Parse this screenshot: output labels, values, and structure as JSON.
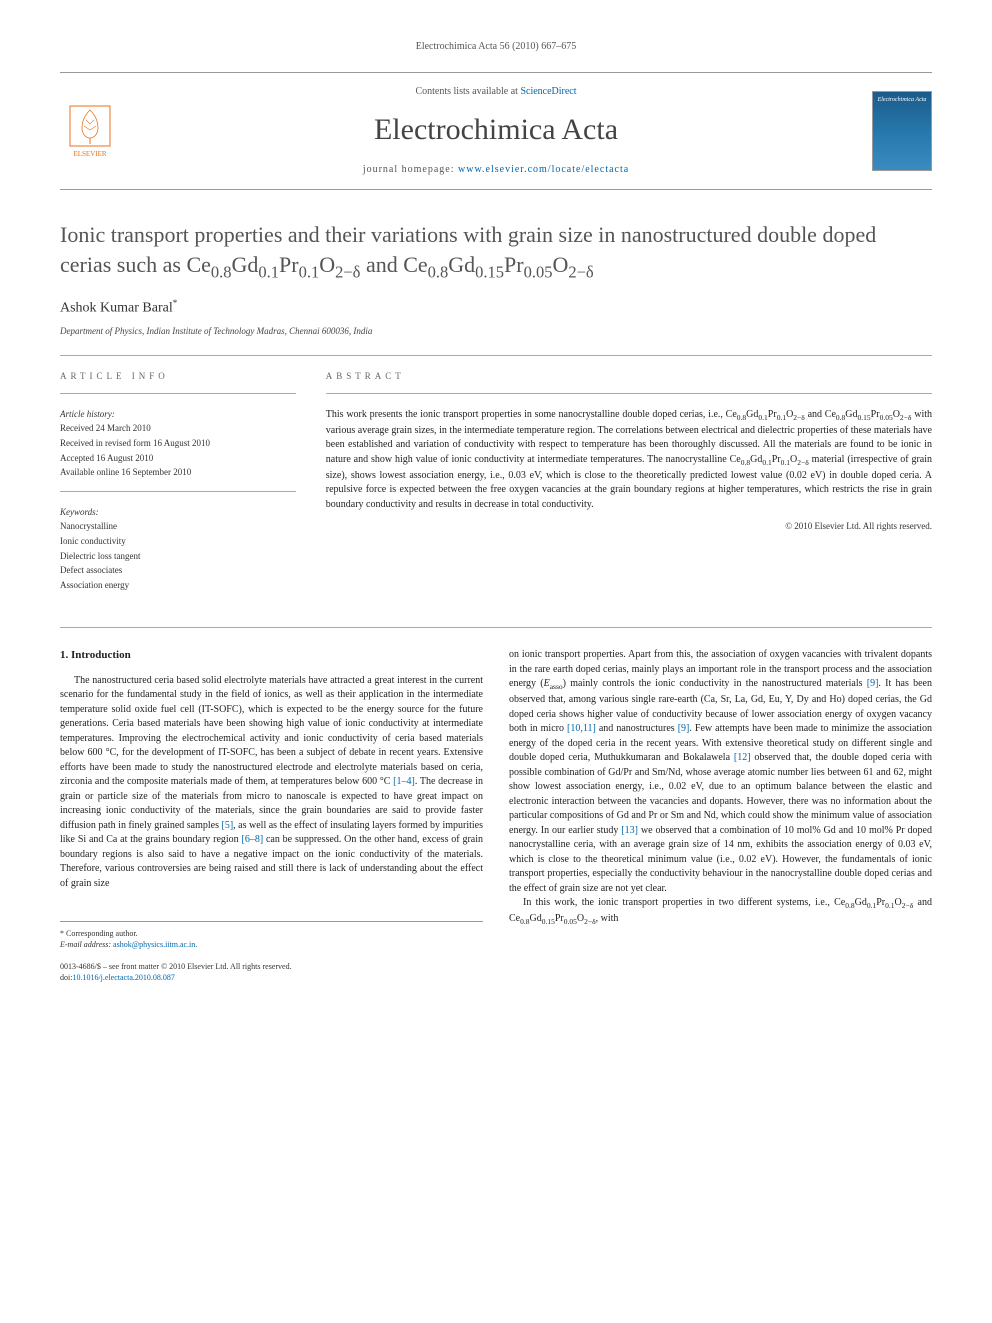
{
  "meta": {
    "citation": "Electrochimica Acta 56 (2010) 667–675"
  },
  "masthead": {
    "contents_prefix": "Contents lists available at ",
    "contents_link": "ScienceDirect",
    "journal": "Electrochimica Acta",
    "homepage_prefix": "journal homepage: ",
    "homepage_url": "www.elsevier.com/locate/electacta",
    "publisher_name": "ELSEVIER",
    "cover_label": "Electrochimica Acta"
  },
  "article": {
    "title_html": "Ionic transport properties and their variations with grain size in nanostructured double doped cerias such as Ce<sub>0.8</sub>Gd<sub>0.1</sub>Pr<sub>0.1</sub>O<sub>2−δ</sub> and Ce<sub>0.8</sub>Gd<sub>0.15</sub>Pr<sub>0.05</sub>O<sub>2−δ</sub>",
    "author": "Ashok Kumar Baral",
    "author_mark": "*",
    "affiliation": "Department of Physics, Indian Institute of Technology Madras, Chennai 600036, India"
  },
  "info": {
    "head": "article info",
    "history_label": "Article history:",
    "received": "Received 24 March 2010",
    "revised": "Received in revised form 16 August 2010",
    "accepted": "Accepted 16 August 2010",
    "online": "Available online 16 September 2010",
    "keywords_label": "Keywords:",
    "kw1": "Nanocrystalline",
    "kw2": "Ionic conductivity",
    "kw3": "Dielectric loss tangent",
    "kw4": "Defect associates",
    "kw5": "Association energy"
  },
  "abstract": {
    "head": "abstract",
    "text_html": "This work presents the ionic transport properties in some nanocrystalline double doped cerias, i.e., Ce<sub>0.8</sub>Gd<sub>0.1</sub>Pr<sub>0.1</sub>O<sub>2−δ</sub> and Ce<sub>0.8</sub>Gd<sub>0.15</sub>Pr<sub>0.05</sub>O<sub>2−δ</sub> with various average grain sizes, in the intermediate temperature region. The correlations between electrical and dielectric properties of these materials have been established and variation of conductivity with respect to temperature has been thoroughly discussed. All the materials are found to be ionic in nature and show high value of ionic conductivity at intermediate temperatures. The nanocrystalline Ce<sub>0.8</sub>Gd<sub>0.1</sub>Pr<sub>0.1</sub>O<sub>2−δ</sub> material (irrespective of grain size), shows lowest association energy, i.e., 0.03 eV, which is close to the theoretically predicted lowest value (0.02 eV) in double doped ceria. A repulsive force is expected between the free oxygen vacancies at the grain boundary regions at higher temperatures, which restricts the rise in grain boundary conductivity and results in decrease in total conductivity.",
    "copyright": "© 2010 Elsevier Ltd. All rights reserved."
  },
  "body": {
    "section_heading": "1.  Introduction",
    "col1_html": "The nanostructured ceria based solid electrolyte materials have attracted a great interest in the current scenario for the fundamental study in the field of ionics, as well as their application in the intermediate temperature solid oxide fuel cell (IT-SOFC), which is expected to be the energy source for the future generations. Ceria based materials have been showing high value of ionic conductivity at intermediate temperatures. Improving the electrochemical activity and ionic conductivity of ceria based materials below 600 °C, for the development of IT-SOFC, has been a subject of debate in recent years. Extensive efforts have been made to study the nanostructured electrode and electrolyte materials based on ceria, zirconia and the composite materials made of them, at temperatures below 600 °C <a href=\"#\">[1–4]</a>. The decrease in grain or particle size of the materials from micro to nanoscale is expected to have great impact on increasing ionic conductivity of the materials, since the grain boundaries are said to provide faster diffusion path in finely grained samples <a href=\"#\">[5]</a>, as well as the effect of insulating layers formed by impurities like Si and Ca at the grains boundary region <a href=\"#\">[6–8]</a> can be suppressed. On the other hand, excess of grain boundary regions is also said to have a negative impact on the ionic conductivity of the materials. Therefore, various controversies are being raised and still there is lack of understanding about the effect of grain size",
    "col2_p1_html": "on ionic transport properties. Apart from this, the association of oxygen vacancies with trivalent dopants in the rare earth doped cerias, mainly plays an important role in the transport process and the association energy (<i>E</i><sub>asso</sub>) mainly controls the ionic conductivity in the nanostructured materials <a href=\"#\">[9]</a>. It has been observed that, among various single rare-earth (Ca, Sr, La, Gd, Eu, Y, Dy and Ho) doped cerias, the Gd doped ceria shows higher value of conductivity because of lower association energy of oxygen vacancy both in micro <a href=\"#\">[10,11]</a> and nanostructures <a href=\"#\">[9]</a>. Few attempts have been made to minimize the association energy of the doped ceria in the recent years. With extensive theoretical study on different single and double doped ceria, Muthukkumaran and Bokalawela <a href=\"#\">[12]</a> observed that, the double doped ceria with possible combination of Gd/Pr and Sm/Nd, whose average atomic number lies between 61 and 62, might show lowest association energy, i.e., 0.02 eV, due to an optimum balance between the elastic and electronic interaction between the vacancies and dopants. However, there was no information about the particular compositions of Gd and Pr or Sm and Nd, which could show the minimum value of association energy. In our earlier study <a href=\"#\">[13]</a> we observed that a combination of 10 mol% Gd and 10 mol% Pr doped nanocrystalline ceria, with an average grain size of 14 nm, exhibits the association energy of 0.03 eV, which is close to the theoretical minimum value (i.e., 0.02 eV). However, the fundamentals of ionic transport properties, especially the conductivity behaviour in the nanocrystalline double doped cerias and the effect of grain size are not yet clear.",
    "col2_p2_html": "In this work, the ionic transport properties in two different systems, i.e., Ce<sub>0.8</sub>Gd<sub>0.1</sub>Pr<sub>0.1</sub>O<sub>2−δ</sub> and Ce<sub>0.8</sub>Gd<sub>0.15</sub>Pr<sub>0.05</sub>O<sub>2−δ</sub>, with"
  },
  "footer": {
    "corresponding": "* Corresponding author.",
    "email_label": "E-mail address: ",
    "email": "ashok@physics.iitm.ac.in",
    "issn_line": "0013-4686/$ – see front matter © 2010 Elsevier Ltd. All rights reserved.",
    "doi_line": "doi:10.1016/j.electacta.2010.08.087"
  },
  "colors": {
    "link": "#0066aa",
    "text": "#333333",
    "rule": "#999999",
    "elsevier_orange": "#e9711c",
    "cover_bg": "#1a5c8c"
  },
  "typography": {
    "body_pt": 10,
    "title_pt": 22,
    "journal_pt": 30,
    "small_pt": 9
  }
}
